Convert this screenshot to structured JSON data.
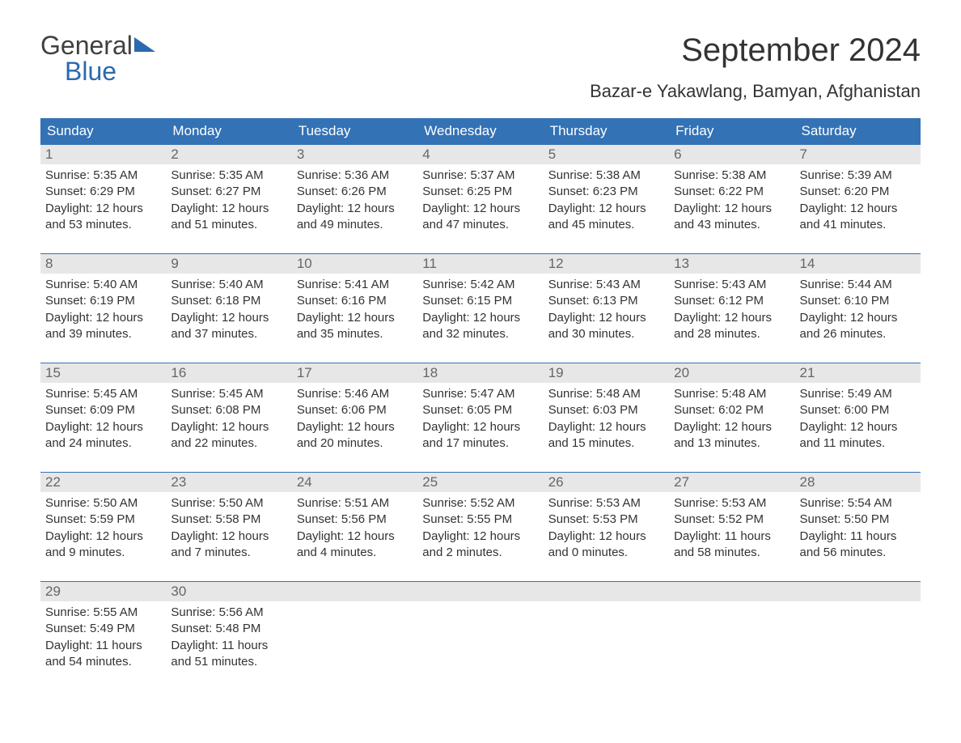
{
  "logo": {
    "general": "General",
    "blue": "Blue"
  },
  "title": "September 2024",
  "location": "Bazar-e Yakawlang, Bamyan, Afghanistan",
  "colors": {
    "header_bg": "#3372b5",
    "header_text": "#ffffff",
    "daynum_bg": "#e7e7e7",
    "border": "#3372b5",
    "logo_blue": "#2a6ab0",
    "text": "#333333"
  },
  "weekdays": [
    "Sunday",
    "Monday",
    "Tuesday",
    "Wednesday",
    "Thursday",
    "Friday",
    "Saturday"
  ],
  "weeks": [
    [
      {
        "n": "1",
        "sunrise": "5:35 AM",
        "sunset": "6:29 PM",
        "d1": "Daylight: 12 hours",
        "d2": "and 53 minutes."
      },
      {
        "n": "2",
        "sunrise": "5:35 AM",
        "sunset": "6:27 PM",
        "d1": "Daylight: 12 hours",
        "d2": "and 51 minutes."
      },
      {
        "n": "3",
        "sunrise": "5:36 AM",
        "sunset": "6:26 PM",
        "d1": "Daylight: 12 hours",
        "d2": "and 49 minutes."
      },
      {
        "n": "4",
        "sunrise": "5:37 AM",
        "sunset": "6:25 PM",
        "d1": "Daylight: 12 hours",
        "d2": "and 47 minutes."
      },
      {
        "n": "5",
        "sunrise": "5:38 AM",
        "sunset": "6:23 PM",
        "d1": "Daylight: 12 hours",
        "d2": "and 45 minutes."
      },
      {
        "n": "6",
        "sunrise": "5:38 AM",
        "sunset": "6:22 PM",
        "d1": "Daylight: 12 hours",
        "d2": "and 43 minutes."
      },
      {
        "n": "7",
        "sunrise": "5:39 AM",
        "sunset": "6:20 PM",
        "d1": "Daylight: 12 hours",
        "d2": "and 41 minutes."
      }
    ],
    [
      {
        "n": "8",
        "sunrise": "5:40 AM",
        "sunset": "6:19 PM",
        "d1": "Daylight: 12 hours",
        "d2": "and 39 minutes."
      },
      {
        "n": "9",
        "sunrise": "5:40 AM",
        "sunset": "6:18 PM",
        "d1": "Daylight: 12 hours",
        "d2": "and 37 minutes."
      },
      {
        "n": "10",
        "sunrise": "5:41 AM",
        "sunset": "6:16 PM",
        "d1": "Daylight: 12 hours",
        "d2": "and 35 minutes."
      },
      {
        "n": "11",
        "sunrise": "5:42 AM",
        "sunset": "6:15 PM",
        "d1": "Daylight: 12 hours",
        "d2": "and 32 minutes."
      },
      {
        "n": "12",
        "sunrise": "5:43 AM",
        "sunset": "6:13 PM",
        "d1": "Daylight: 12 hours",
        "d2": "and 30 minutes."
      },
      {
        "n": "13",
        "sunrise": "5:43 AM",
        "sunset": "6:12 PM",
        "d1": "Daylight: 12 hours",
        "d2": "and 28 minutes."
      },
      {
        "n": "14",
        "sunrise": "5:44 AM",
        "sunset": "6:10 PM",
        "d1": "Daylight: 12 hours",
        "d2": "and 26 minutes."
      }
    ],
    [
      {
        "n": "15",
        "sunrise": "5:45 AM",
        "sunset": "6:09 PM",
        "d1": "Daylight: 12 hours",
        "d2": "and 24 minutes."
      },
      {
        "n": "16",
        "sunrise": "5:45 AM",
        "sunset": "6:08 PM",
        "d1": "Daylight: 12 hours",
        "d2": "and 22 minutes."
      },
      {
        "n": "17",
        "sunrise": "5:46 AM",
        "sunset": "6:06 PM",
        "d1": "Daylight: 12 hours",
        "d2": "and 20 minutes."
      },
      {
        "n": "18",
        "sunrise": "5:47 AM",
        "sunset": "6:05 PM",
        "d1": "Daylight: 12 hours",
        "d2": "and 17 minutes."
      },
      {
        "n": "19",
        "sunrise": "5:48 AM",
        "sunset": "6:03 PM",
        "d1": "Daylight: 12 hours",
        "d2": "and 15 minutes."
      },
      {
        "n": "20",
        "sunrise": "5:48 AM",
        "sunset": "6:02 PM",
        "d1": "Daylight: 12 hours",
        "d2": "and 13 minutes."
      },
      {
        "n": "21",
        "sunrise": "5:49 AM",
        "sunset": "6:00 PM",
        "d1": "Daylight: 12 hours",
        "d2": "and 11 minutes."
      }
    ],
    [
      {
        "n": "22",
        "sunrise": "5:50 AM",
        "sunset": "5:59 PM",
        "d1": "Daylight: 12 hours",
        "d2": "and 9 minutes."
      },
      {
        "n": "23",
        "sunrise": "5:50 AM",
        "sunset": "5:58 PM",
        "d1": "Daylight: 12 hours",
        "d2": "and 7 minutes."
      },
      {
        "n": "24",
        "sunrise": "5:51 AM",
        "sunset": "5:56 PM",
        "d1": "Daylight: 12 hours",
        "d2": "and 4 minutes."
      },
      {
        "n": "25",
        "sunrise": "5:52 AM",
        "sunset": "5:55 PM",
        "d1": "Daylight: 12 hours",
        "d2": "and 2 minutes."
      },
      {
        "n": "26",
        "sunrise": "5:53 AM",
        "sunset": "5:53 PM",
        "d1": "Daylight: 12 hours",
        "d2": "and 0 minutes."
      },
      {
        "n": "27",
        "sunrise": "5:53 AM",
        "sunset": "5:52 PM",
        "d1": "Daylight: 11 hours",
        "d2": "and 58 minutes."
      },
      {
        "n": "28",
        "sunrise": "5:54 AM",
        "sunset": "5:50 PM",
        "d1": "Daylight: 11 hours",
        "d2": "and 56 minutes."
      }
    ],
    [
      {
        "n": "29",
        "sunrise": "5:55 AM",
        "sunset": "5:49 PM",
        "d1": "Daylight: 11 hours",
        "d2": "and 54 minutes."
      },
      {
        "n": "30",
        "sunrise": "5:56 AM",
        "sunset": "5:48 PM",
        "d1": "Daylight: 11 hours",
        "d2": "and 51 minutes."
      },
      null,
      null,
      null,
      null,
      null
    ]
  ]
}
